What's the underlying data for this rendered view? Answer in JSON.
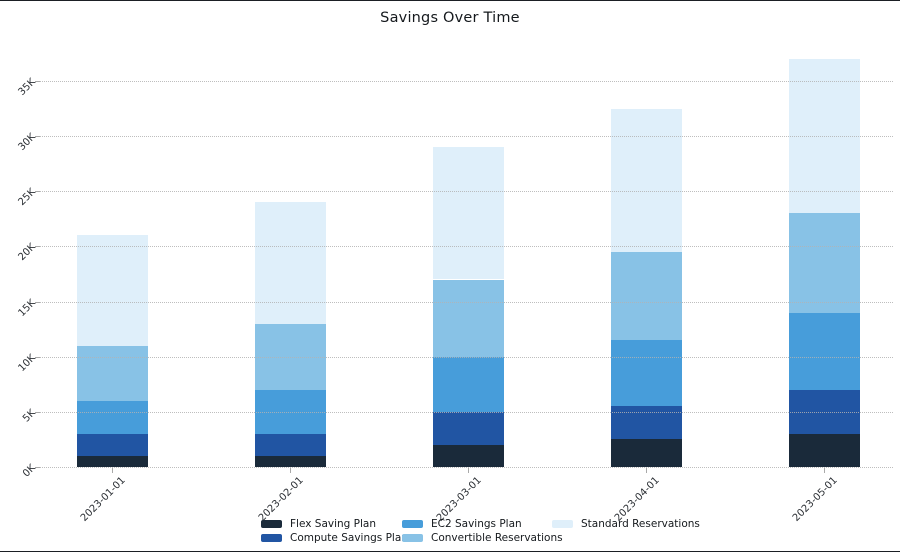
{
  "chart_data": {
    "type": "bar",
    "stacked": true,
    "title": "Savings Over Time",
    "xlabel": "",
    "ylabel": "",
    "categories": [
      "2023-01-01",
      "2023-02-01",
      "2023-03-01",
      "2023-04-01",
      "2023-05-01"
    ],
    "series": [
      {
        "name": "Flex Saving Plan",
        "color": "#1a2a3a",
        "values": [
          1000,
          1000,
          2000,
          2500,
          3000
        ]
      },
      {
        "name": "Compute Savings Plan",
        "color": "#2155a3",
        "values": [
          2000,
          2000,
          3000,
          3000,
          4000
        ]
      },
      {
        "name": "EC2 Savings Plan",
        "color": "#479dda",
        "values": [
          3000,
          4000,
          5000,
          6000,
          7000
        ]
      },
      {
        "name": "Convertible Reservations",
        "color": "#88c2e6",
        "values": [
          5000,
          6000,
          7000,
          8000,
          9000
        ]
      },
      {
        "name": "Standard Reservations",
        "color": "#dfeffa",
        "values": [
          10000,
          11000,
          12000,
          13000,
          14000
        ]
      }
    ],
    "stack_totals": [
      21000,
      24000,
      29000,
      32500,
      37000
    ],
    "y_ticks": [
      {
        "value": 0,
        "label": "0K"
      },
      {
        "value": 5000,
        "label": "5K"
      },
      {
        "value": 10000,
        "label": "10K"
      },
      {
        "value": 15000,
        "label": "15K"
      },
      {
        "value": 20000,
        "label": "20K"
      },
      {
        "value": 25000,
        "label": "25K"
      },
      {
        "value": 30000,
        "label": "30K"
      },
      {
        "value": 35000,
        "label": "35K"
      }
    ],
    "ylim": [
      0,
      37000
    ],
    "grid": "horizontal-dotted",
    "legend_position": "bottom",
    "tick_label_rotation_deg": 45
  },
  "colors": {
    "background": "#ffffff",
    "gridline": "#b3b3b3",
    "text": "#15191d",
    "frame_line": "#1b1f24"
  }
}
